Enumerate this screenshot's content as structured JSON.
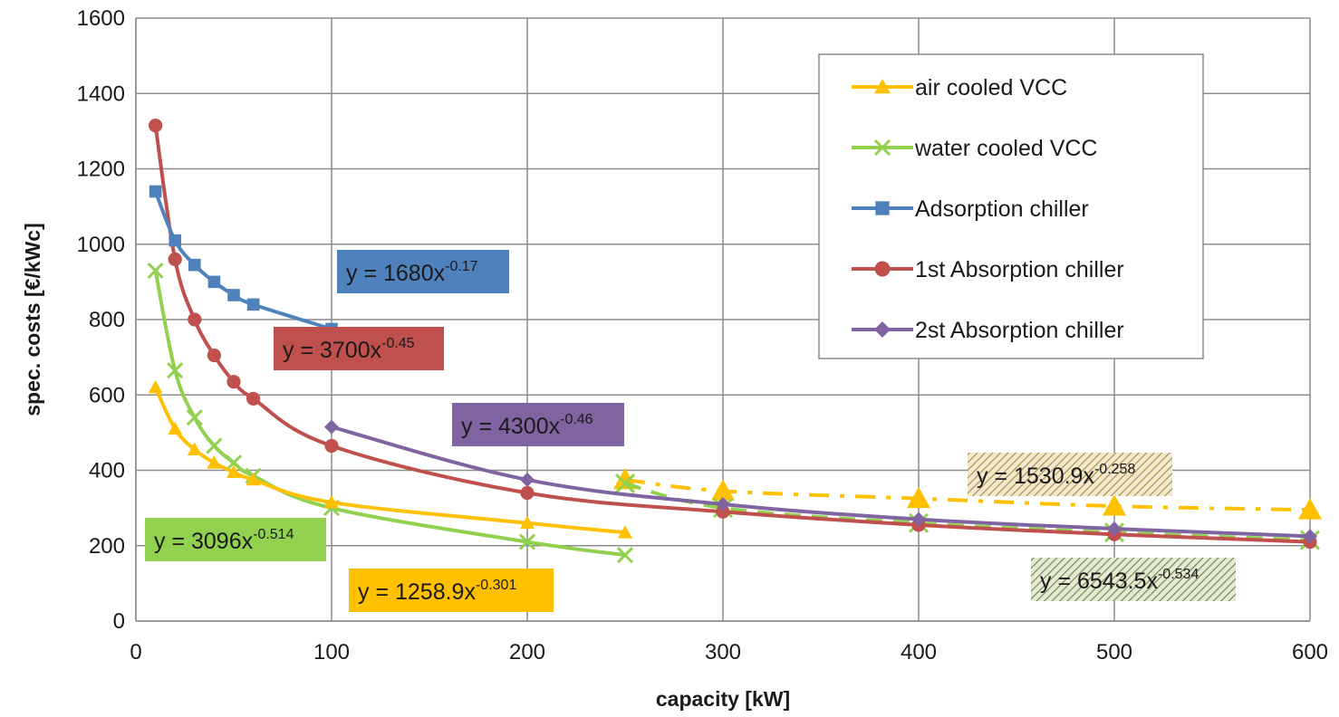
{
  "chart_data": {
    "type": "line",
    "xlabel": "capacity [kW]",
    "ylabel": "spec. costs [€/kWc]",
    "xlim": [
      0,
      600
    ],
    "ylim": [
      0,
      1600
    ],
    "x_ticks": [
      "0",
      "100",
      "200",
      "300",
      "400",
      "500",
      "600"
    ],
    "y_ticks": [
      "0",
      "200",
      "400",
      "600",
      "800",
      "1000",
      "1200",
      "1400",
      "1600"
    ],
    "grid": true,
    "legend_position": "top-right",
    "series": [
      {
        "name": "air cooled VCC",
        "color": "#ffc000",
        "marker": "triangle",
        "x": [
          10,
          20,
          30,
          40,
          50,
          60,
          100,
          200,
          250
        ],
        "y": [
          620,
          510,
          455,
          420,
          395,
          375,
          315,
          260,
          235
        ]
      },
      {
        "name": "water cooled VCC",
        "color": "#92d050",
        "marker": "x",
        "x": [
          10,
          20,
          30,
          40,
          50,
          60,
          100,
          200,
          250
        ],
        "y": [
          930,
          665,
          540,
          465,
          420,
          385,
          300,
          210,
          175
        ]
      },
      {
        "name": "Adsorption chiller",
        "color": "#4f81bd",
        "marker": "square",
        "x": [
          10,
          20,
          30,
          40,
          50,
          60,
          100
        ],
        "y": [
          1140,
          1010,
          945,
          900,
          865,
          840,
          775
        ]
      },
      {
        "name": "1st Absorption chiller",
        "color": "#c0504d",
        "marker": "circle",
        "x": [
          10,
          20,
          30,
          40,
          50,
          60,
          100,
          200,
          300,
          400,
          500,
          600
        ],
        "y": [
          1315,
          960,
          800,
          705,
          635,
          590,
          465,
          340,
          290,
          255,
          230,
          210
        ]
      },
      {
        "name": "2st Absorption chiller",
        "color": "#8064a2",
        "marker": "diamond",
        "x": [
          100,
          200,
          300,
          400,
          500,
          600
        ],
        "y": [
          515,
          375,
          310,
          270,
          245,
          225
        ]
      }
    ],
    "extrapolations": [
      {
        "color": "#ffc000",
        "marker": "triangle",
        "style": "dash-dot",
        "x": [
          250,
          300,
          400,
          500,
          600
        ],
        "y": [
          375,
          345,
          325,
          305,
          295
        ]
      },
      {
        "color": "#92d050",
        "marker": "x",
        "style": "dash",
        "x": [
          250,
          300,
          400,
          500,
          600
        ],
        "y": [
          365,
          300,
          260,
          235,
          215
        ]
      }
    ],
    "annotations": [
      {
        "text": "y = 1680x",
        "exp": "-0.17",
        "fill": "#4f81bd",
        "text_color": "#1a1a1a",
        "hatched": false
      },
      {
        "text": "y = 3700x",
        "exp": "-0.45",
        "fill": "#c0504d",
        "text_color": "#1a1a1a",
        "hatched": false
      },
      {
        "text": "y = 4300x",
        "exp": "-0.46",
        "fill": "#8064a2",
        "text_color": "#1a1a1a",
        "hatched": false
      },
      {
        "text": "y = 3096x",
        "exp": "-0.514",
        "fill": "#92d050",
        "text_color": "#1a1a1a",
        "hatched": false
      },
      {
        "text": "y = 1258.9x",
        "exp": "-0.301",
        "fill": "#ffc000",
        "text_color": "#1a1a1a",
        "hatched": false
      },
      {
        "text": "y = 1530.9x",
        "exp": "-0.258",
        "fill": "#b08d3c",
        "text_color": "#1a1a1a",
        "hatched": true
      },
      {
        "text": "y = 6543.5x",
        "exp": "-0.534",
        "fill": "#6b7d3a",
        "text_color": "#1a1a1a",
        "hatched": true
      }
    ]
  }
}
